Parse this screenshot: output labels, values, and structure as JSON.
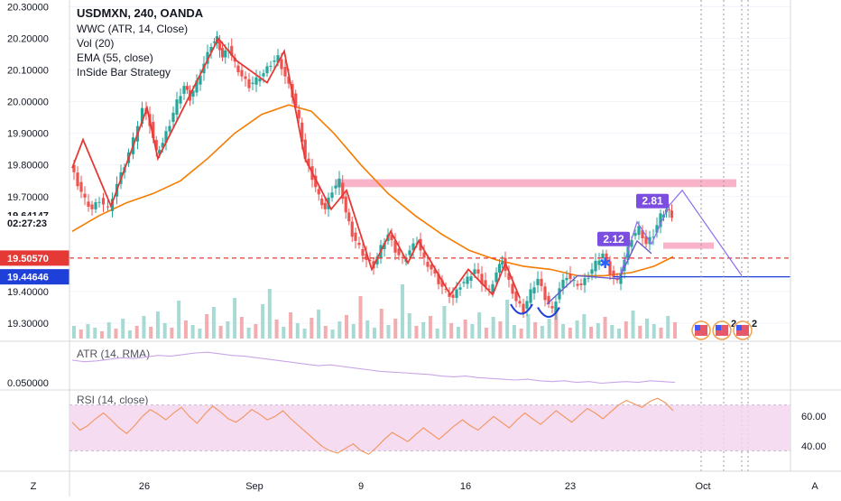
{
  "main_pane": {
    "legend": {
      "title": "USDMXN, 240, OANDA",
      "lines": [
        "WWC (ATR, 14, Close)",
        "Vol (20)",
        "EMA (55, close)",
        "InSide Bar Strategy"
      ]
    },
    "price_tags": [
      {
        "text": "19.64147",
        "price": 19.64147,
        "bg": "#ffffff",
        "fg": "#131722"
      },
      {
        "text": "02:27:23",
        "price": 19.6165,
        "bg": "#ffffff",
        "fg": "#131722"
      },
      {
        "text": "19.50570",
        "price": 19.5057,
        "bg": "#e53935",
        "fg": "#ffffff"
      },
      {
        "text": "19.44646",
        "price": 19.44646,
        "bg": "#1e3fd8",
        "fg": "#ffffff"
      }
    ],
    "pattern_labels": [
      {
        "text": "2.12",
        "price": 19.563,
        "x": 686
      },
      {
        "text": "2.81",
        "price": 19.683,
        "x": 729
      }
    ],
    "event_badges": [
      "2",
      "2"
    ]
  },
  "chart_data": [
    {
      "type": "candlestick",
      "title": "USDMXN, 240, OANDA",
      "ylim": [
        19.26,
        20.31
      ],
      "y_ticks": [
        "20.30000",
        "20.20000",
        "20.10000",
        "20.00000",
        "19.90000",
        "19.80000",
        "19.70000",
        "19.40000",
        "19.30000"
      ],
      "x_ticks": [
        {
          "label": "Z",
          "x": 37
        },
        {
          "label": "26",
          "x": 160
        },
        {
          "label": "Sep",
          "x": 282
        },
        {
          "label": "9",
          "x": 400
        },
        {
          "label": "16",
          "x": 516
        },
        {
          "label": "23",
          "x": 632
        },
        {
          "label": "Oct",
          "x": 779
        },
        {
          "label": "A",
          "x": 903
        }
      ],
      "price_path": [
        [
          80,
          19.8
        ],
        [
          88,
          19.74
        ],
        [
          96,
          19.69
        ],
        [
          104,
          19.66
        ],
        [
          112,
          19.69
        ],
        [
          122,
          19.66
        ],
        [
          132,
          19.74
        ],
        [
          140,
          19.8
        ],
        [
          150,
          19.88
        ],
        [
          160,
          19.98
        ],
        [
          168,
          19.93
        ],
        [
          175,
          19.84
        ],
        [
          182,
          19.87
        ],
        [
          190,
          19.93
        ],
        [
          198,
          20.0
        ],
        [
          206,
          20.05
        ],
        [
          212,
          20.01
        ],
        [
          220,
          20.06
        ],
        [
          228,
          20.12
        ],
        [
          236,
          20.18
        ],
        [
          242,
          20.2
        ],
        [
          248,
          20.14
        ],
        [
          255,
          20.17
        ],
        [
          262,
          20.12
        ],
        [
          270,
          20.08
        ],
        [
          278,
          20.05
        ],
        [
          286,
          20.07
        ],
        [
          294,
          20.09
        ],
        [
          302,
          20.12
        ],
        [
          310,
          20.14
        ],
        [
          318,
          20.08
        ],
        [
          326,
          20.02
        ],
        [
          333,
          19.94
        ],
        [
          340,
          19.82
        ],
        [
          348,
          19.76
        ],
        [
          355,
          19.7
        ],
        [
          362,
          19.66
        ],
        [
          370,
          19.72
        ],
        [
          378,
          19.75
        ],
        [
          385,
          19.65
        ],
        [
          392,
          19.58
        ],
        [
          400,
          19.54
        ],
        [
          408,
          19.5
        ],
        [
          416,
          19.48
        ],
        [
          424,
          19.54
        ],
        [
          432,
          19.58
        ],
        [
          440,
          19.53
        ],
        [
          448,
          19.5
        ],
        [
          456,
          19.53
        ],
        [
          464,
          19.56
        ],
        [
          472,
          19.5
        ],
        [
          480,
          19.47
        ],
        [
          488,
          19.43
        ],
        [
          496,
          19.4
        ],
        [
          504,
          19.38
        ],
        [
          512,
          19.42
        ],
        [
          520,
          19.44
        ],
        [
          528,
          19.47
        ],
        [
          536,
          19.43
        ],
        [
          544,
          19.4
        ],
        [
          552,
          19.46
        ],
        [
          558,
          19.5
        ],
        [
          566,
          19.43
        ],
        [
          574,
          19.37
        ],
        [
          582,
          19.34
        ],
        [
          590,
          19.4
        ],
        [
          598,
          19.44
        ],
        [
          606,
          19.38
        ],
        [
          614,
          19.34
        ],
        [
          622,
          19.41
        ],
        [
          630,
          19.45
        ],
        [
          638,
          19.43
        ],
        [
          646,
          19.42
        ],
        [
          654,
          19.45
        ],
        [
          662,
          19.49
        ],
        [
          670,
          19.52
        ],
        [
          678,
          19.46
        ],
        [
          686,
          19.43
        ],
        [
          694,
          19.5
        ],
        [
          702,
          19.57
        ],
        [
          710,
          19.6
        ],
        [
          718,
          19.55
        ],
        [
          726,
          19.58
        ],
        [
          734,
          19.64
        ],
        [
          740,
          19.66
        ],
        [
          746,
          19.64
        ]
      ],
      "volume_heights": [
        14,
        10,
        16,
        12,
        8,
        18,
        11,
        22,
        9,
        14,
        25,
        13,
        30,
        17,
        12,
        42,
        20,
        15,
        11,
        27,
        35,
        14,
        19,
        45,
        24,
        12,
        16,
        38,
        55,
        21,
        13,
        29,
        17,
        11,
        23,
        32,
        14,
        10,
        19,
        26,
        16,
        47,
        20,
        12,
        33,
        15,
        22,
        60,
        28,
        14,
        18,
        25,
        11,
        36,
        17,
        13,
        21,
        16,
        29,
        12,
        24,
        19,
        43,
        15,
        11,
        27,
        18,
        14,
        22,
        35,
        16,
        12,
        20,
        27,
        13,
        17,
        24,
        15,
        11,
        19,
        31,
        14,
        22,
        16,
        12,
        25,
        18
      ],
      "wave_line": [
        [
          80,
          19.79
        ],
        [
          92,
          19.88
        ],
        [
          123,
          19.67
        ],
        [
          163,
          19.98
        ],
        [
          175,
          19.82
        ],
        [
          242,
          20.2
        ],
        [
          262,
          20.13
        ],
        [
          296,
          20.06
        ],
        [
          315,
          20.16
        ],
        [
          338,
          19.82
        ],
        [
          367,
          19.66
        ],
        [
          384,
          19.72
        ],
        [
          412,
          19.47
        ],
        [
          433,
          19.59
        ],
        [
          452,
          19.49
        ],
        [
          464,
          19.56
        ],
        [
          499,
          19.39
        ],
        [
          519,
          19.47
        ],
        [
          546,
          19.39
        ],
        [
          560,
          19.49
        ],
        [
          576,
          19.38
        ]
      ],
      "ema_line": [
        [
          80,
          19.59
        ],
        [
          110,
          19.64
        ],
        [
          140,
          19.68
        ],
        [
          170,
          19.71
        ],
        [
          200,
          19.75
        ],
        [
          230,
          19.82
        ],
        [
          260,
          19.9
        ],
        [
          290,
          19.96
        ],
        [
          320,
          19.99
        ],
        [
          345,
          19.97
        ],
        [
          370,
          19.9
        ],
        [
          400,
          19.8
        ],
        [
          430,
          19.71
        ],
        [
          460,
          19.64
        ],
        [
          490,
          19.58
        ],
        [
          520,
          19.53
        ],
        [
          550,
          19.5
        ],
        [
          580,
          19.48
        ],
        [
          610,
          19.47
        ],
        [
          640,
          19.45
        ],
        [
          670,
          19.45
        ],
        [
          700,
          19.46
        ],
        [
          725,
          19.48
        ],
        [
          746,
          19.51
        ]
      ],
      "projection_line": [
        [
          686,
          19.44
        ],
        [
          706,
          19.62
        ],
        [
          722,
          19.55
        ],
        [
          741,
          19.67
        ],
        [
          756,
          19.72
        ],
        [
          822,
          19.45
        ]
      ],
      "pink_zones": [
        {
          "x0": 372,
          "x1": 816,
          "y0": 19.73,
          "y1": 19.755
        },
        {
          "x0": 735,
          "x1": 791,
          "y0": 19.535,
          "y1": 19.555
        }
      ],
      "hlines": [
        {
          "price": 19.5057,
          "color": "#e53935",
          "dash": true
        },
        {
          "price": 19.44646,
          "color": "#1e3fd8",
          "dash": false,
          "x0": 680
        }
      ]
    },
    {
      "type": "line",
      "title": "ATR (14, RMA)",
      "y_ticks": [
        "0.050000"
      ],
      "values": [
        0.078,
        0.076,
        0.077,
        0.079,
        0.081,
        0.08,
        0.082,
        0.084,
        0.083,
        0.085,
        0.087,
        0.088,
        0.086,
        0.084,
        0.083,
        0.081,
        0.079,
        0.077,
        0.075,
        0.073,
        0.071,
        0.072,
        0.07,
        0.068,
        0.066,
        0.064,
        0.063,
        0.062,
        0.061,
        0.06,
        0.058,
        0.057,
        0.058,
        0.056,
        0.055,
        0.054,
        0.053,
        0.054,
        0.052,
        0.051,
        0.052,
        0.05,
        0.051,
        0.049,
        0.05,
        0.051,
        0.05,
        0.052,
        0.051,
        0.05
      ]
    },
    {
      "type": "line",
      "title": "RSI (14, close)",
      "y_ticks": [
        "60.00",
        "40.00"
      ],
      "band": [
        30,
        70
      ],
      "values": [
        55,
        48,
        52,
        58,
        63,
        57,
        50,
        45,
        52,
        60,
        66,
        62,
        57,
        63,
        68,
        60,
        54,
        62,
        69,
        64,
        58,
        55,
        60,
        66,
        62,
        57,
        60,
        65,
        58,
        52,
        46,
        40,
        34,
        30,
        28,
        32,
        36,
        30,
        27,
        33,
        40,
        46,
        42,
        38,
        44,
        50,
        45,
        40,
        46,
        52,
        57,
        52,
        48,
        54,
        60,
        55,
        50,
        57,
        63,
        58,
        53,
        59,
        65,
        60,
        55,
        61,
        67,
        63,
        58,
        64,
        70,
        74,
        71,
        68,
        73,
        76,
        72,
        65
      ]
    }
  ]
}
